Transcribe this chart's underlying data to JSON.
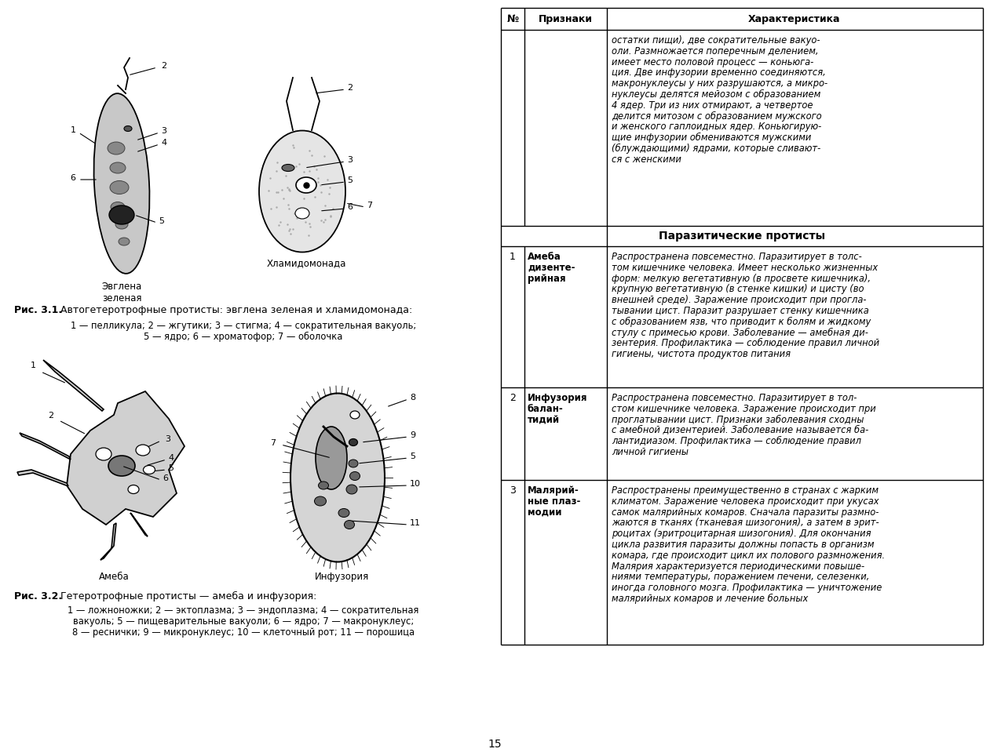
{
  "page_number": "15",
  "bg_color": "#ffffff",
  "fig1_caption_bold": "Рис. 3.1.",
  "fig1_caption_text": " Автогетеротрофные протисты: эвглена зеленая и хламидомонада:",
  "fig1_legend_line1": "1 — пелликула; 2 — жгутики; 3 — стигма; 4 — сократительная вакуоль;",
  "fig1_legend_line2": "5 — ядро; 6 — хроматофор; 7 — оболочка",
  "fig2_caption_bold": "Рис. 3.2.",
  "fig2_caption_text": " Гетеротрофные протисты — амеба и инфузория:",
  "fig2_legend_line1": "1 — ложноножки; 2 — эктоплазма; 3 — эндоплазма; 4 — сократительная",
  "fig2_legend_line2": "вакуоль; 5 — пищеварительные вакуоли; 6 — ядро; 7 — макронуклеус;",
  "fig2_legend_line3": "8 — реснички; 9 — микронуклеус; 10 — клеточный рот; 11 — порошица",
  "label_euglena": "Эвглена\nзеленая",
  "label_chlamydomonas": "Хламидомонада",
  "label_amoeba": "Амеба",
  "label_infusoria": "Инфузория",
  "table_header_col1": "№",
  "table_header_col2": "Признаки",
  "table_header_col3": "Характеристика",
  "table_section_title": "Паразитические протисты",
  "top_text_lines": [
    "остатки пищи), две сократительные вакуо-",
    "оли. Размножается поперечным делением,",
    "имеет место половой процесс — коньюга-",
    "ция. Две инфузории временно соединяются,",
    "макронуклеусы у них разрушаются, а микро-",
    "нуклеусы делятся мейозом с образованием",
    "4 ядер. Три из них отмирают, а четвертое",
    "делится митозом с образованием мужского",
    "и женского гаплоидных ядер. Коньюгирую-",
    "щие инфузории обмениваются мужскими",
    "(блуждающими) ядрами, которые сливают-",
    "ся с женскими"
  ],
  "row1_name_lines": [
    "Амеба",
    "дизенте-",
    "рийная"
  ],
  "row1_desc_lines": [
    "Распространена повсеместно. Паразитирует в толс-",
    "том кишечнике человека. Имеет несколько жизненных",
    "форм: мелкую вегетативную (в просвете кишечника),",
    "крупную вегетативную (в стенке кишки) и цисту (во",
    "внешней среде). Заражение происходит при прогла-",
    "тывании цист. Паразит разрушает стенку кишечника",
    "с образованием язв, что приводит к болям и жидкому",
    "стулу с примесью крови. Заболевание — амебная ди-",
    "зентерия. Профилактика — соблюдение правил личной",
    "гигиены, чистота продуктов питания"
  ],
  "row2_name_lines": [
    "Инфузория",
    "балан-",
    "тидий"
  ],
  "row2_desc_lines": [
    "Распространена повсеместно. Паразитирует в тол-",
    "стом кишечнике человека. Заражение происходит при",
    "проглатывании цист. Признаки заболевания сходны",
    "с амебной дизентерией. Заболевание называется ба-",
    "лантидиазом. Профилактика — соблюдение правил",
    "личной гигиены"
  ],
  "row3_name_lines": [
    "Малярий-",
    "ные плаз-",
    "модии"
  ],
  "row3_desc_lines": [
    "Распространены преимущественно в странах с жарким",
    "климатом. Заражение человека происходит при укусах",
    "самок малярийных комаров. Сначала паразиты размно-",
    "жаются в тканях (тканевая шизогония), а затем в эрит-",
    "роцитах (эритроцитарная шизогония). Для окончания",
    "цикла развития паразиты должны попасть в организм",
    "комара, где происходит цикл их полового размножения.",
    "Малярия характеризуется периодическими повыше-",
    "ниями температуры, поражением печени, селезенки,",
    "иногда головного мозга. Профилактика — уничтожение",
    "малярийных комаров и лечение больных"
  ]
}
